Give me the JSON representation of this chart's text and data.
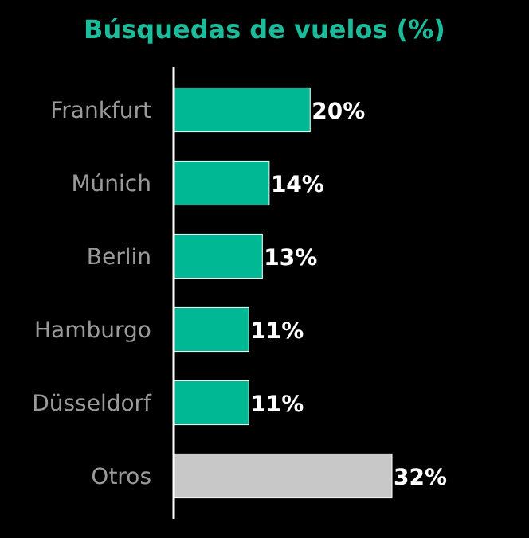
{
  "chart_data": {
    "type": "bar",
    "orientation": "horizontal",
    "title": "Búsquedas de vuelos (%)",
    "categories": [
      "Frankfurt",
      "Múnich",
      "Berlin",
      "Hamburgo",
      "Düsseldorf",
      "Otros"
    ],
    "values": [
      20,
      14,
      13,
      11,
      11,
      32
    ],
    "value_labels": [
      "20%",
      "14%",
      "13%",
      "11%",
      "11%",
      "32%"
    ],
    "colors": [
      "#00b894",
      "#00b894",
      "#00b894",
      "#00b894",
      "#00b894",
      "#c8c8c8"
    ]
  }
}
